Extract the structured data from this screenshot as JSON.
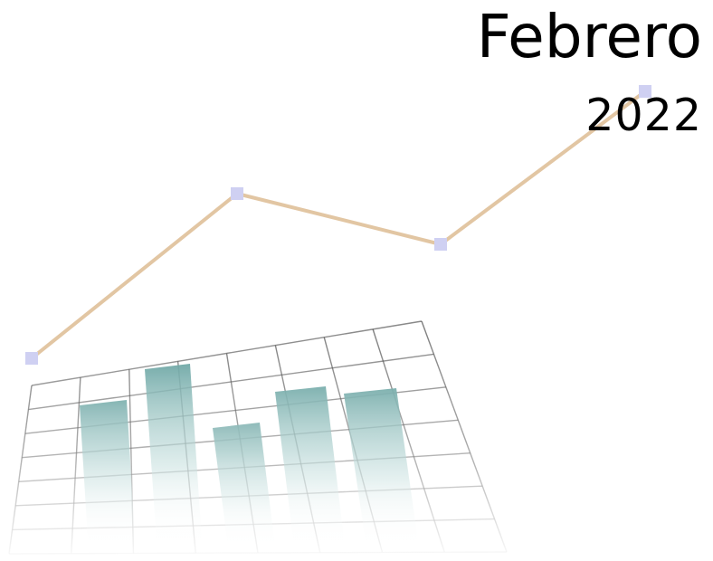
{
  "title": "Febrero",
  "year": "2022",
  "colors": {
    "line": "#e2c6a3",
    "marker": "#cfd0f2",
    "bar": "#6aa7a5",
    "grid": "#3a3a3a",
    "text": "#000000"
  },
  "illustration": {
    "line_points_count": 4,
    "bars_count": 5
  }
}
